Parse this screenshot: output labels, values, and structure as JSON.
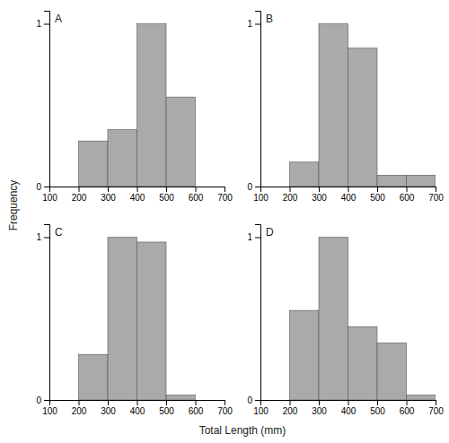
{
  "chart_data": [
    {
      "type": "histogram",
      "title": "A",
      "xlabel": "Total Length (mm)",
      "ylabel": "Frequency",
      "bins": [
        100,
        200,
        300,
        400,
        500,
        600,
        700
      ],
      "values": [
        0,
        0.28,
        0.35,
        1.0,
        0.55,
        0
      ],
      "color": "#aaaaaa",
      "xlim": [
        100,
        700
      ],
      "xticks": [
        100,
        200,
        300,
        400,
        500,
        600,
        700
      ],
      "ylim": [
        0,
        1.08
      ],
      "yticks": [
        0,
        1
      ]
    },
    {
      "type": "histogram",
      "title": "B",
      "bins": [
        100,
        200,
        300,
        400,
        500,
        600,
        700
      ],
      "values": [
        0,
        0.15,
        1.0,
        0.85,
        0.07,
        0.07
      ],
      "color": "#aaaaaa",
      "xlim": [
        100,
        700
      ],
      "xticks": [
        100,
        200,
        300,
        400,
        500,
        600,
        700
      ],
      "ylim": [
        0,
        1.08
      ],
      "yticks": [
        0,
        1
      ]
    },
    {
      "type": "histogram",
      "title": "C",
      "bins": [
        100,
        200,
        300,
        400,
        500,
        600,
        700
      ],
      "values": [
        0,
        0.28,
        1.0,
        0.97,
        0.03,
        0
      ],
      "color": "#aaaaaa",
      "xlim": [
        100,
        700
      ],
      "xticks": [
        100,
        200,
        300,
        400,
        500,
        600,
        700
      ],
      "ylim": [
        0,
        1.08
      ],
      "yticks": [
        0,
        1
      ]
    },
    {
      "type": "histogram",
      "title": "D",
      "bins": [
        100,
        200,
        300,
        400,
        500,
        600,
        700
      ],
      "values": [
        0,
        0.55,
        1.0,
        0.45,
        0.35,
        0.03
      ],
      "color": "#aaaaaa",
      "xlim": [
        100,
        700
      ],
      "xticks": [
        100,
        200,
        300,
        400,
        500,
        600,
        700
      ],
      "ylim": [
        0,
        1.08
      ],
      "yticks": [
        0,
        1
      ]
    }
  ]
}
